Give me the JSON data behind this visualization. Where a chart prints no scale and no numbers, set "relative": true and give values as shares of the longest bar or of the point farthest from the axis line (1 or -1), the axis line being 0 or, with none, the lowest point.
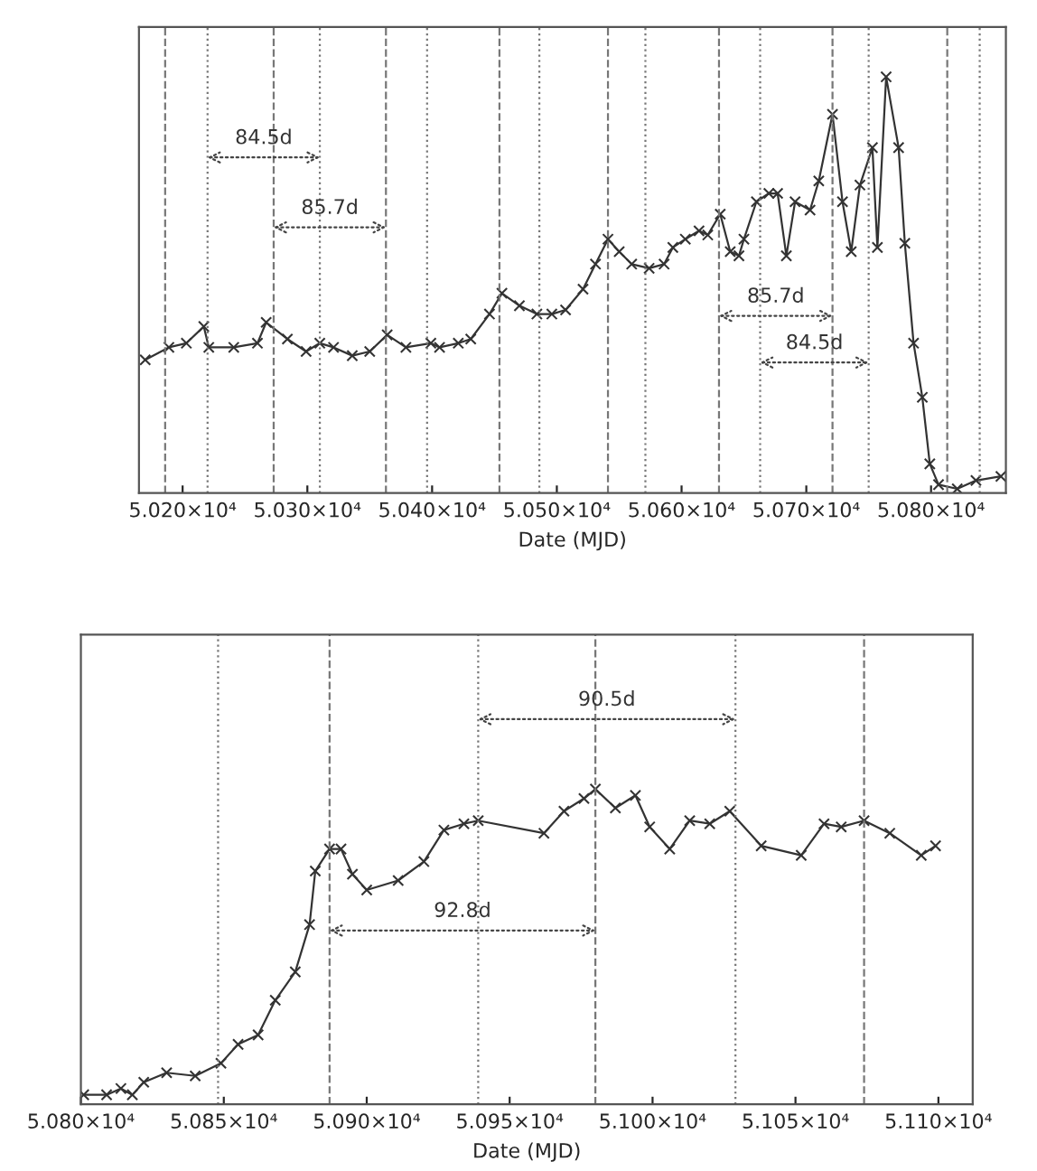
{
  "chart_data": [
    {
      "type": "line",
      "relative": true,
      "xlabel": "Date (MJD)",
      "marker": "cross",
      "line_style": "solid",
      "grid": false,
      "xlim": [
        50165,
        50860
      ],
      "xticks": [
        {
          "value": 50200,
          "label": "5.020×10⁴"
        },
        {
          "value": 50300,
          "label": "5.030×10⁴"
        },
        {
          "value": 50400,
          "label": "5.040×10⁴"
        },
        {
          "value": 50500,
          "label": "5.050×10⁴"
        },
        {
          "value": 50600,
          "label": "5.060×10⁴"
        },
        {
          "value": 50700,
          "label": "5.070×10⁴"
        },
        {
          "value": 50800,
          "label": "5.080×10⁴"
        }
      ],
      "series": [
        {
          "color": "#333333",
          "x": [
            50170,
            50189,
            50203,
            50217,
            50221,
            50241,
            50260,
            50267,
            50284,
            50299,
            50310,
            50321,
            50336,
            50350,
            50364,
            50379,
            50399,
            50406,
            50421,
            50431,
            50446,
            50456,
            50470,
            50484,
            50496,
            50507,
            50521,
            50531,
            50541,
            50550,
            50560,
            50574,
            50586,
            50593,
            50603,
            50614,
            50621,
            50631,
            50639,
            50646,
            50650,
            50660,
            50670,
            50677,
            50684,
            50691,
            50703,
            50710,
            50721,
            50729,
            50736,
            50743,
            50753,
            50757,
            50764,
            50774,
            50779,
            50786,
            50793,
            50799,
            50806,
            50821,
            50836,
            50856
          ],
          "values": [
            0.32,
            0.35,
            0.36,
            0.4,
            0.35,
            0.35,
            0.36,
            0.41,
            0.37,
            0.34,
            0.36,
            0.35,
            0.33,
            0.34,
            0.38,
            0.35,
            0.36,
            0.35,
            0.36,
            0.37,
            0.43,
            0.48,
            0.45,
            0.43,
            0.43,
            0.44,
            0.49,
            0.55,
            0.61,
            0.58,
            0.55,
            0.54,
            0.55,
            0.59,
            0.61,
            0.63,
            0.62,
            0.67,
            0.58,
            0.57,
            0.61,
            0.7,
            0.72,
            0.72,
            0.57,
            0.7,
            0.68,
            0.75,
            0.91,
            0.7,
            0.58,
            0.74,
            0.83,
            0.59,
            1,
            0.83,
            0.6,
            0.36,
            0.23,
            0.07,
            0.02,
            0.01,
            0.03,
            0.04
          ]
        }
      ],
      "annotations": [
        "84.5d",
        "85.7d",
        "85.7d",
        "84.5d"
      ],
      "ref_lines": [
        {
          "axis": "x",
          "value": 50186,
          "line_style": "dashed"
        },
        {
          "axis": "x",
          "value": 50220,
          "line_style": "dotted"
        },
        {
          "axis": "x",
          "value": 50273,
          "line_style": "dashed"
        },
        {
          "axis": "x",
          "value": 50310,
          "line_style": "dotted"
        },
        {
          "axis": "x",
          "value": 50363,
          "line_style": "dashed"
        },
        {
          "axis": "x",
          "value": 50396,
          "line_style": "dotted"
        },
        {
          "axis": "x",
          "value": 50454,
          "line_style": "dashed"
        },
        {
          "axis": "x",
          "value": 50486,
          "line_style": "dotted"
        },
        {
          "axis": "x",
          "value": 50541,
          "line_style": "dashed"
        },
        {
          "axis": "x",
          "value": 50571,
          "line_style": "dotted"
        },
        {
          "axis": "x",
          "value": 50630,
          "line_style": "dashed"
        },
        {
          "axis": "x",
          "value": 50663,
          "line_style": "dotted"
        },
        {
          "axis": "x",
          "value": 50721,
          "line_style": "dashed"
        },
        {
          "axis": "x",
          "value": 50750,
          "line_style": "dotted"
        },
        {
          "axis": "x",
          "value": 50813,
          "line_style": "dashed"
        },
        {
          "axis": "x",
          "value": 50839,
          "line_style": "dotted"
        }
      ]
    },
    {
      "type": "line",
      "relative": true,
      "xlabel": "Date (MJD)",
      "marker": "cross",
      "line_style": "solid",
      "grid": false,
      "xlim": [
        50800,
        51112
      ],
      "xticks": [
        {
          "value": 50800,
          "label": "5.080×10⁴"
        },
        {
          "value": 50850,
          "label": "5.085×10⁴"
        },
        {
          "value": 50900,
          "label": "5.090×10⁴"
        },
        {
          "value": 50950,
          "label": "5.095×10⁴"
        },
        {
          "value": 51000,
          "label": "5.100×10⁴"
        },
        {
          "value": 51050,
          "label": "5.105×10⁴"
        },
        {
          "value": 51100,
          "label": "5.110×10⁴"
        }
      ],
      "series": [
        {
          "color": "#333333",
          "x": [
            50801,
            50809,
            50814,
            50818,
            50822,
            50830,
            50840,
            50849,
            50855,
            50862,
            50868,
            50875,
            50880,
            50882,
            50887,
            50891,
            50895,
            50900,
            50911,
            50920,
            50927,
            50934,
            50939,
            50962,
            50969,
            50976,
            50980,
            50987,
            50994,
            50999,
            51006,
            51013,
            51020,
            51027,
            51038,
            51052,
            51060,
            51066,
            51074,
            51083,
            51094,
            51099
          ],
          "values": [
            0.03,
            0.03,
            0.05,
            0.03,
            0.07,
            0.1,
            0.09,
            0.13,
            0.19,
            0.22,
            0.33,
            0.42,
            0.57,
            0.74,
            0.81,
            0.81,
            0.73,
            0.68,
            0.71,
            0.77,
            0.87,
            0.89,
            0.9,
            0.86,
            0.93,
            0.97,
            1,
            0.94,
            0.98,
            0.88,
            0.81,
            0.9,
            0.89,
            0.93,
            0.82,
            0.79,
            0.89,
            0.88,
            0.9,
            0.86,
            0.79,
            0.82
          ]
        }
      ],
      "annotations": [
        "90.5d",
        "92.8d"
      ],
      "ref_lines": [
        {
          "axis": "x",
          "value": 50848,
          "line_style": "dotted"
        },
        {
          "axis": "x",
          "value": 50887,
          "line_style": "dashed"
        },
        {
          "axis": "x",
          "value": 50939,
          "line_style": "dotted"
        },
        {
          "axis": "x",
          "value": 50980,
          "line_style": "dashed"
        },
        {
          "axis": "x",
          "value": 51029,
          "line_style": "dotted"
        },
        {
          "axis": "x",
          "value": 51074,
          "line_style": "dashed"
        }
      ]
    }
  ]
}
